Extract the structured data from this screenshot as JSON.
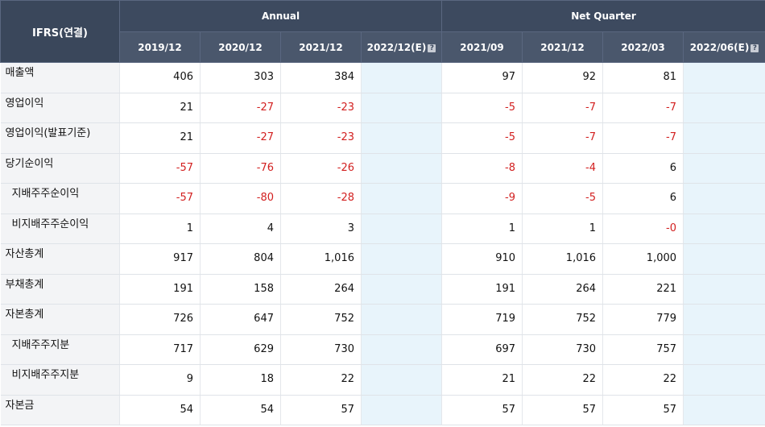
{
  "header": {
    "corner": "IFRS(연결)",
    "annual_label": "Annual",
    "quarter_label": "Net Quarter",
    "est_icon": "?",
    "periods": [
      "2019/12",
      "2020/12",
      "2021/12",
      "2022/12(E)",
      "2021/09",
      "2021/12",
      "2022/03",
      "2022/06(E)"
    ]
  },
  "rows": [
    {
      "label": "매출액",
      "v": [
        "406",
        "303",
        "384",
        "",
        "97",
        "92",
        "81",
        ""
      ]
    },
    {
      "label": "영업이익",
      "v": [
        "21",
        "-27",
        "-23",
        "",
        "-5",
        "-7",
        "-7",
        ""
      ]
    },
    {
      "label": "영업이익(발표기준)",
      "v": [
        "21",
        "-27",
        "-23",
        "",
        "-5",
        "-7",
        "-7",
        ""
      ]
    },
    {
      "label": "당기순이익",
      "v": [
        "-57",
        "-76",
        "-26",
        "",
        "-8",
        "-4",
        "6",
        ""
      ]
    },
    {
      "label": "지배주주순이익",
      "v": [
        "-57",
        "-80",
        "-28",
        "",
        "-9",
        "-5",
        "6",
        ""
      ]
    },
    {
      "label": "비지배주주순이익",
      "v": [
        "1",
        "4",
        "3",
        "",
        "1",
        "1",
        "-0",
        ""
      ]
    },
    {
      "label": "자산총계",
      "v": [
        "917",
        "804",
        "1,016",
        "",
        "910",
        "1,016",
        "1,000",
        ""
      ]
    },
    {
      "label": "부채총계",
      "v": [
        "191",
        "158",
        "264",
        "",
        "191",
        "264",
        "221",
        ""
      ]
    },
    {
      "label": "자본총계",
      "v": [
        "726",
        "647",
        "752",
        "",
        "719",
        "752",
        "779",
        ""
      ]
    },
    {
      "label": "지배주주지분",
      "v": [
        "717",
        "629",
        "730",
        "",
        "697",
        "730",
        "757",
        ""
      ]
    },
    {
      "label": "비지배주주지분",
      "v": [
        "9",
        "18",
        "22",
        "",
        "21",
        "22",
        "22",
        ""
      ]
    },
    {
      "label": "자본금",
      "v": [
        "54",
        "54",
        "57",
        "",
        "57",
        "57",
        "57",
        ""
      ]
    }
  ]
}
